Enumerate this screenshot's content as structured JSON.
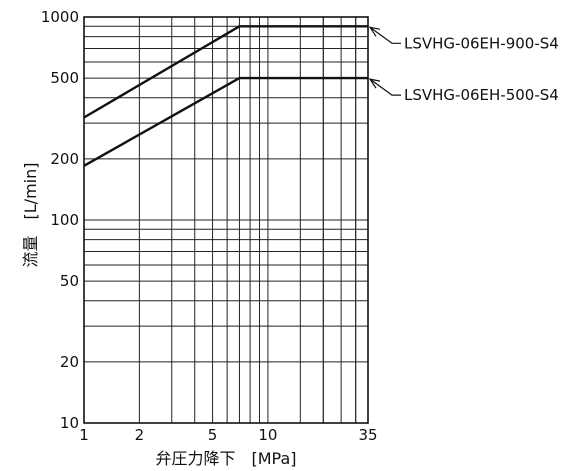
{
  "chart_data": {
    "type": "line",
    "xlabel": "弁圧力降下　[MPa]",
    "ylabel": "流量　[L/min]",
    "xscale": "log",
    "yscale": "log",
    "xlim": [
      1,
      35
    ],
    "ylim": [
      10,
      1000
    ],
    "x_ticks": [
      1,
      2,
      5,
      10,
      35
    ],
    "x_tick_labels": [
      "1",
      "2",
      "5",
      "10",
      "35"
    ],
    "y_ticks": [
      10,
      20,
      50,
      100,
      200,
      500,
      1000
    ],
    "y_tick_labels": [
      "10",
      "20",
      "50",
      "100",
      "200",
      "500",
      "1000"
    ],
    "grid": true,
    "series": [
      {
        "name": "LSVHG-06EH-900-S4",
        "x": [
          1,
          7,
          35
        ],
        "y": [
          320,
          900,
          900
        ]
      },
      {
        "name": "LSVHG-06EH-500-S4",
        "x": [
          1,
          7,
          35
        ],
        "y": [
          185,
          500,
          500
        ]
      }
    ]
  }
}
